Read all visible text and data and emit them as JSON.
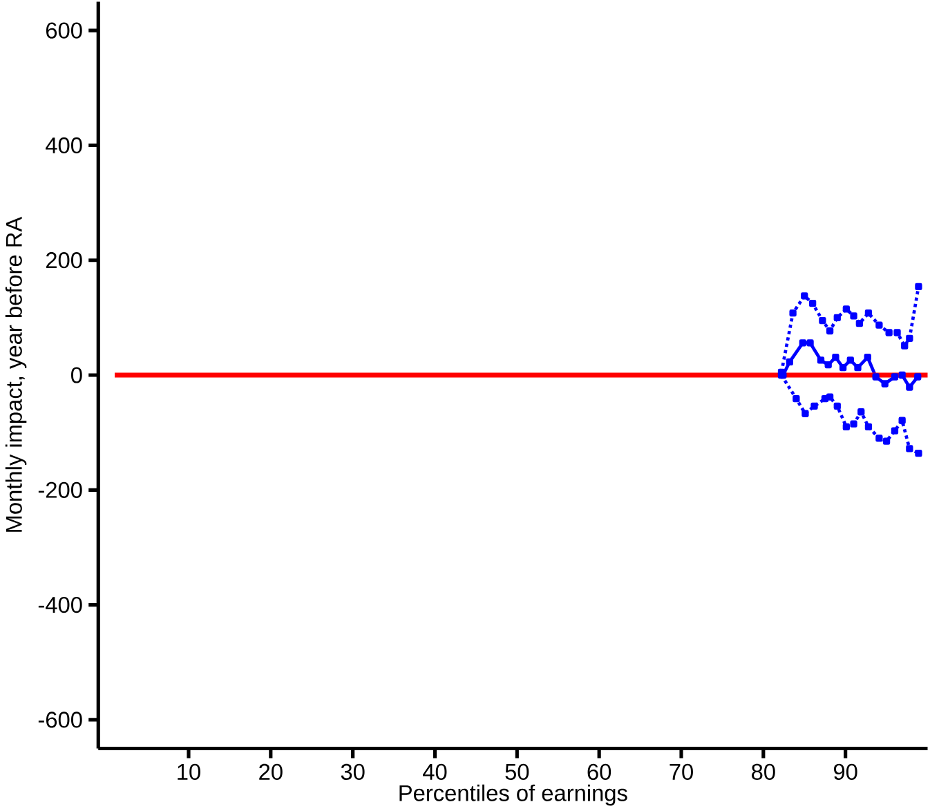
{
  "chart_data": {
    "type": "line",
    "xlabel": "Percentiles of earnings",
    "ylabel": "Monthly impact, year before RA",
    "xlim": [
      -1,
      100
    ],
    "ylim": [
      -650,
      650
    ],
    "xticks": [
      10,
      20,
      30,
      40,
      50,
      60,
      70,
      80,
      90
    ],
    "yticks": [
      -600,
      -400,
      -200,
      0,
      200,
      400,
      600
    ],
    "grid": false,
    "series": [
      {
        "color": "#0000ff",
        "line_style": "dotted",
        "marker": "square",
        "x": [
          82.2,
          83.6,
          85.0,
          86.0,
          87.2,
          88.1,
          89.0,
          90.1,
          91.0,
          91.7,
          92.8,
          94.1,
          95.3,
          96.3,
          97.2,
          97.8,
          98.9
        ],
        "values": [
          5,
          108,
          138,
          125,
          95,
          77,
          100,
          115,
          103,
          90,
          108,
          87,
          74,
          74,
          51,
          64,
          154
        ]
      },
      {
        "color": "#0000ff",
        "line_style": "solid",
        "marker": "square",
        "x": [
          82.4,
          83.2,
          84.8,
          85.7,
          87.0,
          87.9,
          88.8,
          89.7,
          90.6,
          91.5,
          92.7,
          93.7,
          94.8,
          96.0,
          96.9,
          97.8,
          98.8
        ],
        "values": [
          0,
          23,
          56,
          56,
          26,
          18,
          31,
          13,
          26,
          13,
          31,
          -3,
          -15,
          -3,
          0,
          -21,
          -3
        ]
      },
      {
        "color": "#0000ff",
        "line_style": "dotted",
        "marker": "square",
        "x": [
          82.2,
          84.0,
          85.1,
          86.2,
          87.5,
          88.1,
          89.0,
          90.1,
          91.0,
          91.9,
          92.8,
          94.1,
          95.0,
          96.0,
          96.9,
          97.8,
          98.9
        ],
        "values": [
          0,
          -41,
          -67,
          -54,
          -41,
          -38,
          -54,
          -90,
          -85,
          -64,
          -90,
          -110,
          -115,
          -97,
          -79,
          -128,
          -136
        ]
      },
      {
        "color": "#ff0000",
        "line_style": "solid",
        "marker": "none",
        "x": [
          1,
          100
        ],
        "values": [
          0,
          0
        ]
      }
    ]
  }
}
